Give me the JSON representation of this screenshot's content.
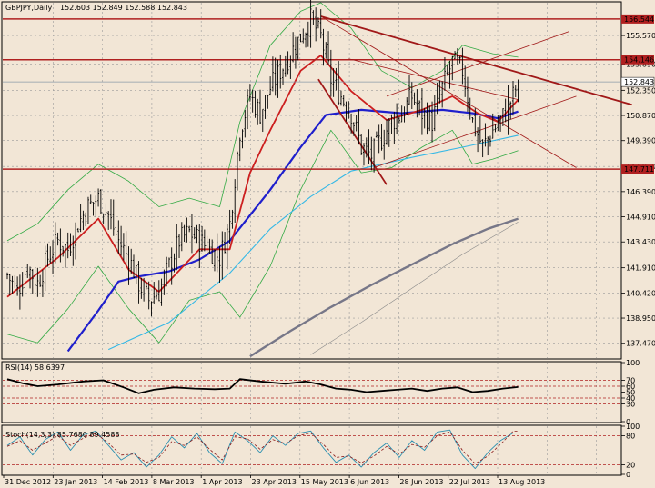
{
  "header": {
    "symbol_timeframe": "GBPJPY,Daily",
    "ohlc": "152.603 152.849 152.588 152.843"
  },
  "colors": {
    "background": "#f2e6d6",
    "grid": "#9a9a9a",
    "candle": "#000000",
    "ma_red": "#cc1f1f",
    "ma_blue": "#1f1fcc",
    "ma_lightblue": "#35b8e6",
    "ma_gray": "#777788",
    "bollinger": "#33aa44",
    "level_line": "#b02020",
    "trendline": "#a01818"
  },
  "chart_data": [
    {
      "type": "candlestick",
      "title": "GBPJPY,Daily",
      "ylim": [
        136.6,
        157.5
      ],
      "price_ticks": [
        "155.570",
        "153.890",
        "152.350",
        "150.870",
        "149.390",
        "147.870",
        "146.390",
        "144.910",
        "143.430",
        "141.910",
        "140.420",
        "138.950",
        "137.470"
      ],
      "level_labels": [
        {
          "name": "resistance-1",
          "value": 156.544,
          "text": "156.544"
        },
        {
          "name": "resistance-2",
          "value": 154.146,
          "text": "154.146"
        },
        {
          "name": "support-1",
          "value": 147.711,
          "text": "147.711"
        }
      ],
      "current_price": {
        "value": 152.843,
        "text": "152.843"
      },
      "date_labels": [
        "31 Dec 2012",
        "23 Jan 2013",
        "14 Feb 2013",
        "8 Mar 2013",
        "1 Apr 2013",
        "23 Apr 2013",
        "15 May 2013",
        "6 Jun 2013",
        "28 Jun 2013",
        "22 Jul 2013",
        "13 Aug 2013"
      ],
      "close_anchors": [
        [
          0,
          141.5
        ],
        [
          4,
          140.5
        ],
        [
          8,
          142.0
        ],
        [
          12,
          141.0
        ],
        [
          16,
          142.5
        ],
        [
          20,
          143.5
        ],
        [
          24,
          143.0
        ],
        [
          28,
          144.5
        ],
        [
          32,
          145.5
        ],
        [
          36,
          146.0
        ],
        [
          40,
          145.0
        ],
        [
          44,
          143.5
        ],
        [
          48,
          142.5
        ],
        [
          52,
          141.0
        ],
        [
          56,
          140.0
        ],
        [
          60,
          140.5
        ],
        [
          64,
          142.0
        ],
        [
          68,
          143.5
        ],
        [
          72,
          144.0
        ],
        [
          76,
          143.5
        ],
        [
          80,
          143.0
        ],
        [
          84,
          142.5
        ],
        [
          88,
          144.5
        ],
        [
          92,
          150.0
        ],
        [
          96,
          152.0
        ],
        [
          100,
          151.0
        ],
        [
          104,
          152.5
        ],
        [
          108,
          153.5
        ],
        [
          112,
          154.5
        ],
        [
          116,
          155.5
        ],
        [
          120,
          156.5
        ],
        [
          124,
          155.5
        ],
        [
          128,
          153.0
        ],
        [
          132,
          152.0
        ],
        [
          136,
          151.0
        ],
        [
          140,
          149.0
        ],
        [
          144,
          148.5
        ],
        [
          148,
          149.5
        ],
        [
          152,
          150.5
        ],
        [
          156,
          151.0
        ],
        [
          160,
          152.0
        ],
        [
          164,
          151.0
        ],
        [
          168,
          150.5
        ],
        [
          172,
          152.5
        ],
        [
          176,
          154.0
        ],
        [
          180,
          153.5
        ],
        [
          184,
          150.5
        ],
        [
          188,
          149.0
        ],
        [
          192,
          150.0
        ],
        [
          196,
          150.8
        ],
        [
          200,
          152.0
        ],
        [
          202,
          152.843
        ]
      ],
      "overlays": {
        "ma_red": [
          [
            0,
            140.2
          ],
          [
            20,
            142.5
          ],
          [
            36,
            144.8
          ],
          [
            48,
            141.8
          ],
          [
            60,
            140.5
          ],
          [
            76,
            143.0
          ],
          [
            88,
            143.0
          ],
          [
            96,
            147.5
          ],
          [
            104,
            150.0
          ],
          [
            116,
            153.5
          ],
          [
            124,
            154.4
          ],
          [
            136,
            152.3
          ],
          [
            150,
            150.6
          ],
          [
            164,
            151.2
          ],
          [
            176,
            152.0
          ],
          [
            186,
            151.0
          ],
          [
            194,
            150.5
          ],
          [
            202,
            151.8
          ]
        ],
        "ma_blue": [
          [
            24,
            137.0
          ],
          [
            36,
            139.4
          ],
          [
            44,
            141.1
          ],
          [
            52,
            141.4
          ],
          [
            64,
            141.7
          ],
          [
            76,
            142.4
          ],
          [
            88,
            143.5
          ],
          [
            104,
            146.5
          ],
          [
            116,
            149.0
          ],
          [
            126,
            150.9
          ],
          [
            140,
            151.2
          ],
          [
            156,
            151.0
          ],
          [
            172,
            151.2
          ],
          [
            184,
            151.0
          ],
          [
            194,
            150.7
          ],
          [
            202,
            151.1
          ]
        ],
        "ma_lightblue": [
          [
            40,
            137.1
          ],
          [
            64,
            138.7
          ],
          [
            88,
            141.6
          ],
          [
            104,
            144.2
          ],
          [
            120,
            146.1
          ],
          [
            136,
            147.6
          ],
          [
            160,
            148.4
          ],
          [
            180,
            149.0
          ],
          [
            202,
            149.7
          ]
        ],
        "ma_gray": [
          [
            96,
            136.7
          ],
          [
            112,
            138.2
          ],
          [
            128,
            139.6
          ],
          [
            144,
            140.9
          ],
          [
            160,
            142.1
          ],
          [
            176,
            143.3
          ],
          [
            190,
            144.2
          ],
          [
            202,
            144.8
          ]
        ],
        "ma_gray_thin": [
          [
            120,
            136.8
          ],
          [
            140,
            138.7
          ],
          [
            160,
            140.7
          ],
          [
            180,
            142.7
          ],
          [
            202,
            144.6
          ]
        ],
        "bollinger_upper": [
          [
            0,
            143.5
          ],
          [
            12,
            144.5
          ],
          [
            24,
            146.5
          ],
          [
            36,
            148.0
          ],
          [
            48,
            147.0
          ],
          [
            60,
            145.5
          ],
          [
            72,
            146.0
          ],
          [
            84,
            145.5
          ],
          [
            92,
            150.5
          ],
          [
            104,
            155.0
          ],
          [
            116,
            157.0
          ],
          [
            124,
            157.5
          ],
          [
            136,
            156.0
          ],
          [
            148,
            153.5
          ],
          [
            160,
            152.5
          ],
          [
            172,
            153.5
          ],
          [
            180,
            155.0
          ],
          [
            192,
            154.5
          ],
          [
            202,
            154.3
          ]
        ],
        "bollinger_lower": [
          [
            0,
            138.0
          ],
          [
            12,
            137.5
          ],
          [
            24,
            139.5
          ],
          [
            36,
            142.0
          ],
          [
            48,
            139.5
          ],
          [
            60,
            137.5
          ],
          [
            72,
            140.0
          ],
          [
            84,
            140.5
          ],
          [
            92,
            139.0
          ],
          [
            104,
            142.0
          ],
          [
            116,
            146.5
          ],
          [
            128,
            150.0
          ],
          [
            140,
            147.5
          ],
          [
            152,
            147.8
          ],
          [
            164,
            149.0
          ],
          [
            176,
            150.0
          ],
          [
            184,
            148.0
          ],
          [
            192,
            148.3
          ],
          [
            202,
            148.8
          ]
        ]
      },
      "trendlines": [
        {
          "name": "descending-resistance",
          "from": [
            124,
            156.7
          ],
          "to": [
            247,
            151.5
          ],
          "style": "thick"
        },
        {
          "name": "channel-upper",
          "from": [
            150,
            152.0
          ],
          "to": [
            222,
            155.8
          ],
          "style": "thin"
        },
        {
          "name": "channel-lower",
          "from": [
            145,
            147.8
          ],
          "to": [
            225,
            152.0
          ],
          "style": "thin"
        },
        {
          "name": "fan-line-1",
          "from": [
            124,
            156.7
          ],
          "to": [
            225,
            147.8
          ],
          "style": "thin"
        },
        {
          "name": "fan-line-2",
          "from": [
            135,
            154.2
          ],
          "to": [
            202,
            151.8
          ],
          "style": "thin"
        },
        {
          "name": "drop-line",
          "from": [
            123,
            153.0
          ],
          "to": [
            150,
            146.8
          ],
          "style": "thick"
        }
      ]
    },
    {
      "type": "line",
      "title": "RSI(14) 58.6397",
      "ylim": [
        0,
        100
      ],
      "ticks": [
        "100",
        "70",
        "60",
        "50",
        "40",
        "30",
        "0"
      ],
      "levels": [
        70,
        60,
        40,
        30
      ],
      "series": [
        {
          "values": [
            [
              0,
              72
            ],
            [
              6,
              65
            ],
            [
              12,
              60
            ],
            [
              20,
              63
            ],
            [
              30,
              68
            ],
            [
              38,
              70
            ],
            [
              46,
              58
            ],
            [
              52,
              48
            ],
            [
              58,
              54
            ],
            [
              66,
              58
            ],
            [
              74,
              56
            ],
            [
              82,
              55
            ],
            [
              88,
              56
            ],
            [
              92,
              72
            ],
            [
              100,
              68
            ],
            [
              110,
              64
            ],
            [
              118,
              68
            ],
            [
              124,
              63
            ],
            [
              130,
              56
            ],
            [
              136,
              54
            ],
            [
              142,
              50
            ],
            [
              148,
              52
            ],
            [
              154,
              54
            ],
            [
              160,
              56
            ],
            [
              166,
              52
            ],
            [
              172,
              56
            ],
            [
              178,
              58
            ],
            [
              184,
              50
            ],
            [
              190,
              52
            ],
            [
              196,
              56
            ],
            [
              202,
              58.6
            ]
          ]
        }
      ]
    },
    {
      "type": "line",
      "title": "Stoch(14,3,3) 85.7680 89.4588",
      "ylim": [
        0,
        100
      ],
      "ticks": [
        "100",
        "80",
        "20",
        "0"
      ],
      "levels": [
        80,
        20
      ],
      "series": [
        {
          "name": "main",
          "values": [
            [
              0,
              60
            ],
            [
              5,
              78
            ],
            [
              10,
              40
            ],
            [
              15,
              72
            ],
            [
              20,
              88
            ],
            [
              25,
              50
            ],
            [
              30,
              82
            ],
            [
              35,
              90
            ],
            [
              40,
              60
            ],
            [
              45,
              30
            ],
            [
              50,
              45
            ],
            [
              55,
              15
            ],
            [
              60,
              40
            ],
            [
              65,
              78
            ],
            [
              70,
              55
            ],
            [
              75,
              85
            ],
            [
              80,
              45
            ],
            [
              85,
              22
            ],
            [
              90,
              88
            ],
            [
              95,
              70
            ],
            [
              100,
              45
            ],
            [
              105,
              80
            ],
            [
              110,
              60
            ],
            [
              115,
              85
            ],
            [
              120,
              90
            ],
            [
              125,
              55
            ],
            [
              130,
              25
            ],
            [
              135,
              40
            ],
            [
              140,
              15
            ],
            [
              145,
              45
            ],
            [
              150,
              65
            ],
            [
              155,
              35
            ],
            [
              160,
              70
            ],
            [
              165,
              50
            ],
            [
              170,
              88
            ],
            [
              175,
              92
            ],
            [
              180,
              40
            ],
            [
              185,
              12
            ],
            [
              190,
              45
            ],
            [
              195,
              70
            ],
            [
              200,
              85.8
            ],
            [
              202,
              85.8
            ]
          ]
        },
        {
          "name": "signal",
          "values": [
            [
              0,
              58
            ],
            [
              5,
              70
            ],
            [
              10,
              50
            ],
            [
              15,
              65
            ],
            [
              20,
              80
            ],
            [
              25,
              60
            ],
            [
              30,
              75
            ],
            [
              35,
              85
            ],
            [
              40,
              65
            ],
            [
              45,
              40
            ],
            [
              50,
              42
            ],
            [
              55,
              25
            ],
            [
              60,
              35
            ],
            [
              65,
              68
            ],
            [
              70,
              60
            ],
            [
              75,
              78
            ],
            [
              80,
              52
            ],
            [
              85,
              30
            ],
            [
              90,
              78
            ],
            [
              95,
              74
            ],
            [
              100,
              52
            ],
            [
              105,
              72
            ],
            [
              110,
              64
            ],
            [
              115,
              80
            ],
            [
              120,
              86
            ],
            [
              125,
              62
            ],
            [
              130,
              35
            ],
            [
              135,
              38
            ],
            [
              140,
              24
            ],
            [
              145,
              38
            ],
            [
              150,
              58
            ],
            [
              155,
              42
            ],
            [
              160,
              62
            ],
            [
              165,
              56
            ],
            [
              170,
              80
            ],
            [
              175,
              88
            ],
            [
              180,
              50
            ],
            [
              185,
              22
            ],
            [
              190,
              38
            ],
            [
              195,
              62
            ],
            [
              200,
              89.5
            ],
            [
              202,
              89.5
            ]
          ]
        }
      ]
    }
  ]
}
